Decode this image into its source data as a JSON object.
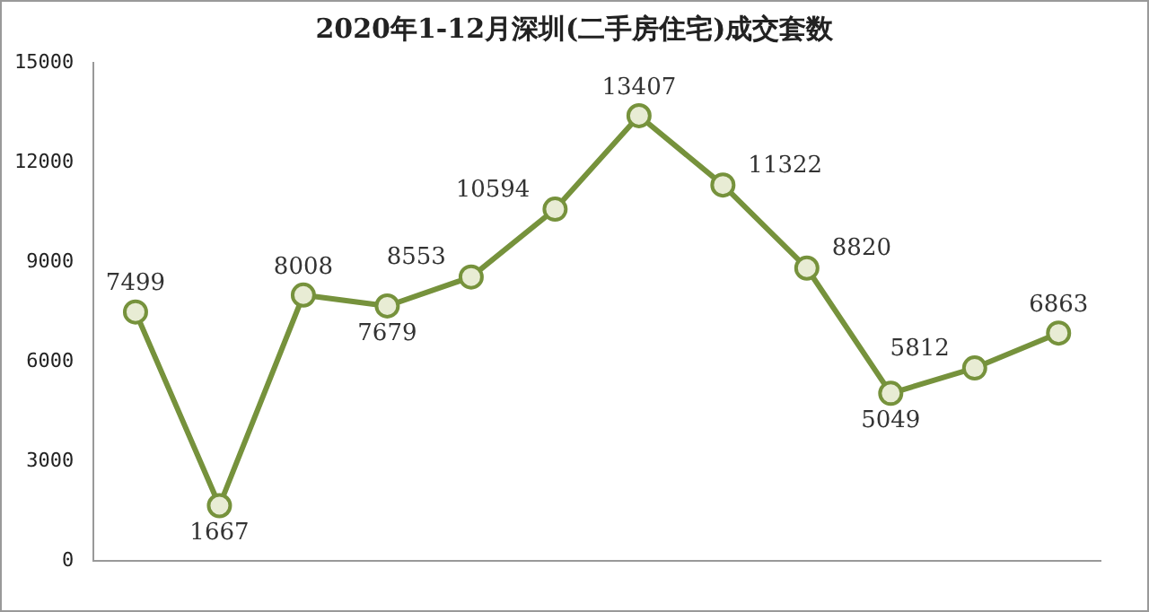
{
  "chart_data": {
    "type": "line",
    "title": "2020年1-12月深圳(二手房住宅)成交套数",
    "categories": [
      null,
      null,
      null,
      null,
      null,
      null,
      null,
      null,
      null,
      null,
      null,
      null
    ],
    "series": [
      {
        "color": "#76923c",
        "values": [
          7499,
          1667,
          8008,
          7679,
          8553,
          10594,
          13407,
          11322,
          8820,
          5049,
          5812,
          6863
        ]
      }
    ],
    "ylim": [
      0,
      15000
    ],
    "yticks": [
      0,
      3000,
      6000,
      9000,
      12000,
      15000
    ],
    "grid": false,
    "legend": false,
    "marker": "circle",
    "data_labels": true
  }
}
